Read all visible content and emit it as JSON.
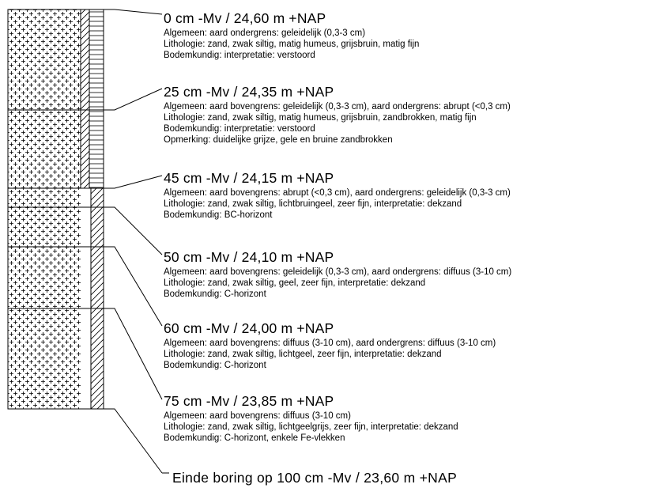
{
  "layers": [
    {
      "header": "0 cm -Mv / 24,60 m +NAP",
      "lines": [
        "Algemeen: aard ondergrens: geleidelijk (0,3-3 cm)",
        "Lithologie: zand, zwak siltig, matig humeus, grijsbruin, matig fijn",
        "Bodemkundig: interpretatie: verstoord"
      ]
    },
    {
      "header": "25 cm -Mv / 24,35 m +NAP",
      "lines": [
        "Algemeen: aard bovengrens: geleidelijk (0,3-3 cm), aard ondergrens: abrupt (<0,3 cm)",
        "Lithologie: zand, zwak siltig, matig humeus, grijsbruin, zandbrokken, matig fijn",
        "Bodemkundig: interpretatie: verstoord",
        "Opmerking: duidelijke grijze, gele en bruine zandbrokken"
      ]
    },
    {
      "header": "45 cm -Mv / 24,15 m +NAP",
      "lines": [
        "Algemeen: aard bovengrens: abrupt (<0,3 cm), aard ondergrens: geleidelijk (0,3-3 cm)",
        "Lithologie: zand, zwak siltig, lichtbruingeel, zeer fijn, interpretatie: dekzand",
        "Bodemkundig: BC-horizont"
      ]
    },
    {
      "header": "50 cm -Mv / 24,10 m +NAP",
      "lines": [
        "Algemeen: aard bovengrens: geleidelijk (0,3-3 cm), aard ondergrens: diffuus (3-10 cm)",
        "Lithologie: zand, zwak siltig, geel, zeer fijn, interpretatie: dekzand",
        "Bodemkundig: C-horizont"
      ]
    },
    {
      "header": "60 cm -Mv / 24,00 m +NAP",
      "lines": [
        "Algemeen: aard bovengrens: diffuus (3-10 cm), aard ondergrens: diffuus (3-10 cm)",
        "Lithologie: zand, zwak siltig, lichtgeel, zeer fijn, interpretatie: dekzand",
        "Bodemkundig: C-horizont"
      ]
    },
    {
      "header": "75 cm -Mv / 23,85 m +NAP",
      "lines": [
        "Algemeen: aard bovengrens: diffuus (3-10 cm)",
        "Lithologie: zand, zwak siltig, lichtgeelgrijs, zeer fijn, interpretatie: dekzand",
        "Bodemkundig: C-horizont, enkele Fe-vlekken"
      ]
    }
  ],
  "end": "Einde boring op 100 cm -Mv / 23,60 m +NAP"
}
